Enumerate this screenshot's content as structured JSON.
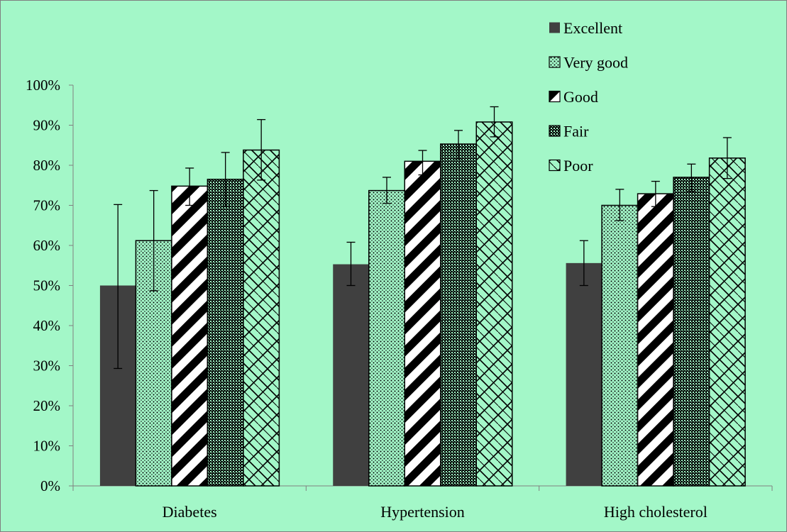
{
  "chart_data": {
    "type": "bar",
    "title": "",
    "xlabel": "",
    "ylabel": "",
    "categories": [
      "Diabetes",
      "Hypertension",
      "High cholesterol"
    ],
    "ylim": [
      0,
      1
    ],
    "yticks": [
      "0%",
      "10%",
      "20%",
      "30%",
      "40%",
      "50%",
      "60%",
      "70%",
      "80%",
      "90%",
      "100%"
    ],
    "grid": false,
    "legend_position": "top-right",
    "series": [
      {
        "name": "Excellent",
        "pattern": "solid",
        "color": "#404040",
        "values": [
          0.5,
          0.553,
          0.556
        ],
        "err_low": [
          0.293,
          0.5,
          0.5
        ],
        "err_high": [
          0.702,
          0.608,
          0.612
        ]
      },
      {
        "name": "Very good",
        "pattern": "dots",
        "color": "#000000",
        "values": [
          0.612,
          0.737,
          0.7
        ],
        "err_low": [
          0.487,
          0.705,
          0.662
        ],
        "err_high": [
          0.737,
          0.77,
          0.74
        ]
      },
      {
        "name": "Good",
        "pattern": "diagonal-stripes",
        "color": "#000000",
        "values": [
          0.748,
          0.81,
          0.729
        ],
        "err_low": [
          0.7,
          0.776,
          0.697
        ],
        "err_high": [
          0.793,
          0.837,
          0.76
        ]
      },
      {
        "name": "Fair",
        "pattern": "checker",
        "color": "#000000",
        "values": [
          0.765,
          0.853,
          0.77
        ],
        "err_low": [
          0.697,
          0.816,
          0.735
        ],
        "err_high": [
          0.832,
          0.887,
          0.803
        ]
      },
      {
        "name": "Poor",
        "pattern": "zigzag",
        "color": "#000000",
        "values": [
          0.838,
          0.908,
          0.818
        ],
        "err_low": [
          0.763,
          0.871,
          0.767
        ],
        "err_high": [
          0.914,
          0.946,
          0.869
        ]
      }
    ]
  }
}
